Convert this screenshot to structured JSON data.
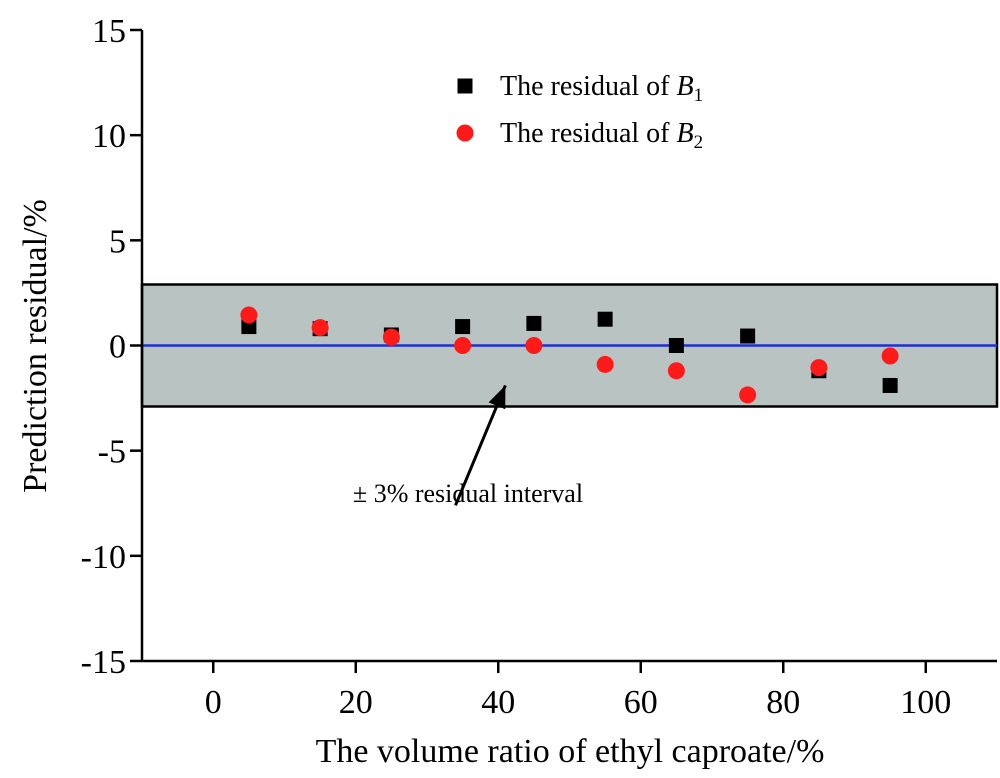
{
  "chart_data": {
    "type": "scatter",
    "xlabel": "The volume ratio of ethyl caproate/%",
    "ylabel": "Prediction residual/%",
    "xlim": [
      -10,
      110
    ],
    "ylim": [
      -15,
      15
    ],
    "xticks": [
      0,
      20,
      40,
      60,
      80,
      100
    ],
    "yticks": [
      -15,
      -10,
      -5,
      0,
      5,
      10,
      15
    ],
    "grid": false,
    "legend_position": "top-center",
    "band": {
      "y0": -2.9,
      "y1": 2.9,
      "color": "#b9c3c1"
    },
    "zero_line_color": "#1f2fd6",
    "annotation": {
      "text": "± 3% residual interval",
      "arrow_from": [
        34,
        -7.6
      ],
      "arrow_to": [
        41,
        -1.9
      ]
    },
    "series": [
      {
        "name": "The residual of B1",
        "label_prefix": "The residual of ",
        "label_var": "B",
        "label_sub": "1",
        "marker": "square",
        "color": "#000000",
        "x": [
          5,
          15,
          25,
          35,
          45,
          55,
          65,
          75,
          85,
          95
        ],
        "y": [
          0.9,
          0.8,
          0.5,
          0.9,
          1.05,
          1.25,
          0.0,
          0.45,
          -1.2,
          -1.9
        ]
      },
      {
        "name": "The residual of B2",
        "label_prefix": "The residual of ",
        "label_var": "B",
        "label_sub": "2",
        "marker": "circle",
        "color": "#ff1a1a",
        "x": [
          5,
          15,
          25,
          35,
          45,
          55,
          65,
          75,
          85,
          95
        ],
        "y": [
          1.45,
          0.85,
          0.4,
          0.0,
          0.0,
          -0.9,
          -1.2,
          -2.35,
          -1.05,
          -0.5
        ]
      }
    ]
  }
}
